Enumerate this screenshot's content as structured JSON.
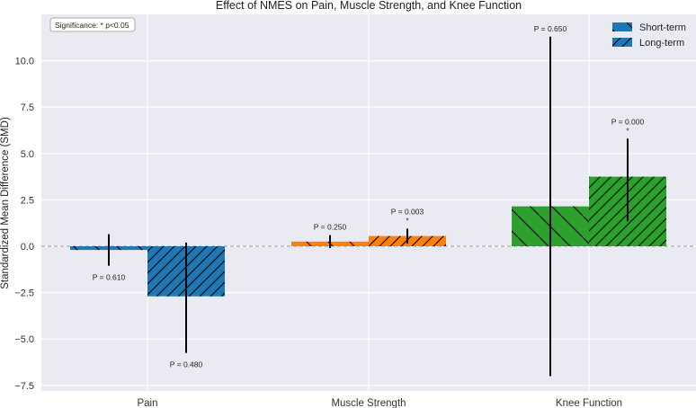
{
  "chart_data": {
    "type": "bar",
    "title": "Effect of NMES on Pain, Muscle Strength, and Knee Function",
    "ylabel": "Standardized Mean Difference (SMD)",
    "xlabel": "",
    "categories": [
      "Pain",
      "Muscle Strength",
      "Knee Function"
    ],
    "ylim": [
      -7.8,
      12.5
    ],
    "yticks": [
      -7.5,
      -5.0,
      -2.5,
      0.0,
      2.5,
      5.0,
      7.5,
      10.0
    ],
    "ytick_labels": [
      "−7.5",
      "−5.0",
      "−2.5",
      "0.0",
      "2.5",
      "5.0",
      "7.5",
      "10.0"
    ],
    "grid": true,
    "reference_line": 0,
    "category_colors": [
      "#1f77b4",
      "#ff7f0e",
      "#2ca02c"
    ],
    "series": [
      {
        "name": "Short-term",
        "hatch": "backslash",
        "values": [
          -0.2,
          0.25,
          2.15
        ],
        "ci_low": [
          -1.05,
          -0.1,
          -7.0
        ],
        "ci_high": [
          0.65,
          0.6,
          11.3
        ],
        "p_labels": [
          "P = 0.610",
          "P = 0.250",
          "P = 0.650"
        ],
        "significant": [
          false,
          false,
          false
        ]
      },
      {
        "name": "Long-term",
        "hatch": "slash",
        "values": [
          -2.7,
          0.55,
          3.75
        ],
        "ci_low": [
          -5.75,
          0.15,
          1.35
        ],
        "ci_high": [
          0.2,
          0.95,
          5.8
        ],
        "p_labels": [
          "P = 0.480",
          "P = 0.003",
          "P = 0.000"
        ],
        "significant": [
          false,
          true,
          true
        ]
      }
    ],
    "significance_note": "Significance: * p<0.05",
    "significance_marker": "*",
    "legend": {
      "position": "top-right"
    }
  }
}
